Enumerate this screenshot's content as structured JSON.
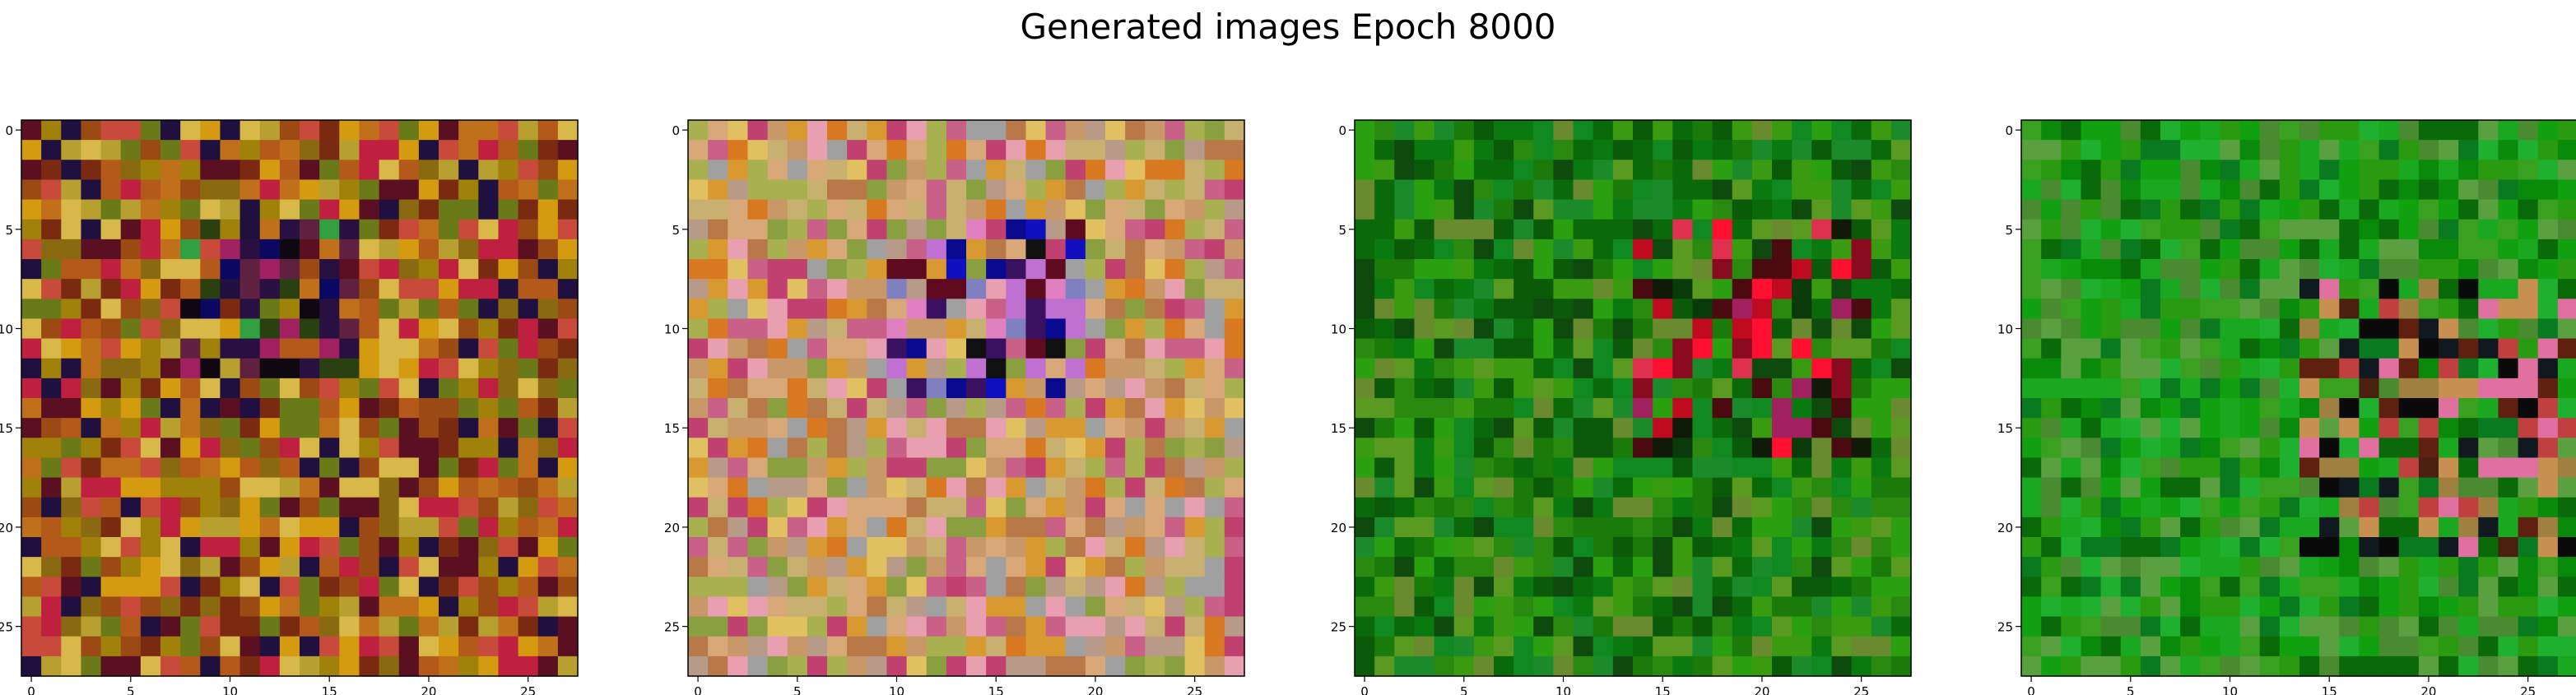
{
  "figure": {
    "title": "Generated images Epoch 8000"
  },
  "chart_data": [
    {
      "type": "heatmap",
      "title": "",
      "xlabel": "",
      "ylabel": "",
      "xlim": [
        -0.5,
        27.5
      ],
      "ylim": [
        27.5,
        -0.5
      ],
      "grid": false,
      "xticks": [
        0,
        5,
        10,
        15,
        20,
        25
      ],
      "yticks": [
        0,
        5,
        10,
        15,
        20,
        25
      ],
      "palette": [
        "#8a6a10",
        "#a0820a",
        "#b35a1a",
        "#c0701a",
        "#d49a10",
        "#9a4a12",
        "#7a2a10",
        "#c84a3a",
        "#6a7a18",
        "#b8a030",
        "#d8b848",
        "#5a1020",
        "#201040",
        "#c02040"
      ],
      "dark_region": {
        "rows": [
          5,
          12
        ],
        "cols": [
          8,
          16
        ],
        "colors": [
          "#100810",
          "#281040",
          "#0a0860",
          "#602040",
          "#2a4010",
          "#a02060",
          "#30a040"
        ]
      }
    },
    {
      "type": "heatmap",
      "title": "",
      "xlabel": "",
      "ylabel": "",
      "xlim": [
        -0.5,
        27.5
      ],
      "ylim": [
        27.5,
        -0.5
      ],
      "grid": false,
      "xticks": [
        0,
        5,
        10,
        15,
        20,
        25
      ],
      "yticks": [
        0,
        5,
        10,
        15,
        20,
        25
      ],
      "palette": [
        "#c89868",
        "#d8a878",
        "#c8b070",
        "#b87848",
        "#d89a30",
        "#a8b050",
        "#c86088",
        "#e8a0b0",
        "#b89a88",
        "#e0c060",
        "#d87820",
        "#8aa040",
        "#c04070",
        "#a0a0a0"
      ],
      "dark_region": {
        "rows": [
          5,
          13
        ],
        "cols": [
          10,
          19
        ],
        "colors": [
          "#0a0a90",
          "#1010c0",
          "#3a1060",
          "#c070d0",
          "#e080c0",
          "#600a20",
          "#101010",
          "#8080c0"
        ]
      }
    },
    {
      "type": "heatmap",
      "title": "",
      "xlabel": "",
      "ylabel": "",
      "xlim": [
        -0.5,
        27.5
      ],
      "ylim": [
        27.5,
        -0.5
      ],
      "grid": false,
      "xticks": [
        0,
        5,
        10,
        15,
        20,
        25
      ],
      "yticks": [
        0,
        5,
        10,
        15,
        20,
        25
      ],
      "palette": [
        "#1a7a0a",
        "#0a6a0a",
        "#2a8a10",
        "#108a20",
        "#0a5a0a",
        "#3a9a10",
        "#1a8a2a",
        "#0a7a10",
        "#5a9a20",
        "#0e4a0e",
        "#2aa010",
        "#6a8a30"
      ],
      "dark_region": {
        "rows": [
          5,
          16
        ],
        "cols": [
          14,
          25
        ],
        "colors": [
          "#c00a20",
          "#ff1030",
          "#8a0a20",
          "#4a0a10",
          "#101a08",
          "#a02060",
          "#e03050",
          "#0a3a0a"
        ]
      }
    },
    {
      "type": "heatmap",
      "title": "",
      "xlabel": "",
      "ylabel": "",
      "xlim": [
        -0.5,
        27.5
      ],
      "ylim": [
        27.5,
        -0.5
      ],
      "grid": false,
      "xticks": [
        0,
        5,
        10,
        15,
        20,
        25
      ],
      "yticks": [
        0,
        5,
        10,
        15,
        20,
        25
      ],
      "palette": [
        "#10a010",
        "#0a8a0a",
        "#1aa820",
        "#0a6a0a",
        "#3aa020",
        "#20b030",
        "#5aa040",
        "#0a7a20",
        "#4a8a30",
        "#2a9a10"
      ],
      "dark_region": {
        "rows": [
          8,
          21
        ],
        "cols": [
          14,
          27
        ],
        "colors": [
          "#0a0a0a",
          "#101820",
          "#c04040",
          "#e070a0",
          "#4a2010",
          "#a08040",
          "#c89050",
          "#602010"
        ]
      }
    }
  ]
}
